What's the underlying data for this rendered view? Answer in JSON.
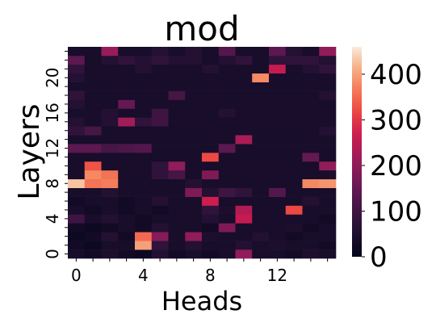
{
  "chart_data": {
    "type": "heatmap",
    "title": "mod",
    "xlabel": "Heads",
    "ylabel": "Layers",
    "x": [
      0,
      1,
      2,
      3,
      4,
      5,
      6,
      7,
      8,
      9,
      10,
      11,
      12,
      13,
      14,
      15
    ],
    "y": [
      0,
      1,
      2,
      3,
      4,
      5,
      6,
      7,
      8,
      9,
      10,
      11,
      12,
      13,
      14,
      15,
      16,
      17,
      18,
      19,
      20,
      21,
      22,
      23
    ],
    "x_tick_labels": [
      "0",
      "4",
      "8",
      "12"
    ],
    "y_tick_labels": [
      "0",
      "4",
      "8",
      "12",
      "16",
      "20"
    ],
    "x_tick_values": [
      0,
      4,
      8,
      12
    ],
    "y_tick_values": [
      0,
      4,
      8,
      12,
      16,
      20
    ],
    "colorbar": {
      "min": 0,
      "max": 460,
      "tick_values": [
        0,
        100,
        200,
        300,
        400
      ],
      "tick_labels": [
        "0",
        "100",
        "200",
        "300",
        "400"
      ],
      "colormap": "rocket"
    },
    "grid": false,
    "values": [
      [
        40,
        30,
        50,
        30,
        20,
        60,
        30,
        40,
        30,
        40,
        200,
        40,
        40,
        30,
        50,
        40
      ],
      [
        30,
        20,
        40,
        40,
        400,
        80,
        40,
        60,
        40,
        40,
        60,
        40,
        50,
        40,
        40,
        30
      ],
      [
        20,
        30,
        60,
        30,
        350,
        190,
        40,
        200,
        50,
        40,
        40,
        60,
        40,
        30,
        40,
        40
      ],
      [
        30,
        20,
        30,
        40,
        30,
        60,
        40,
        40,
        30,
        180,
        40,
        40,
        40,
        50,
        30,
        40
      ],
      [
        100,
        40,
        60,
        40,
        30,
        40,
        40,
        40,
        60,
        40,
        260,
        40,
        40,
        40,
        40,
        30
      ],
      [
        40,
        30,
        40,
        30,
        40,
        30,
        40,
        40,
        80,
        50,
        240,
        40,
        40,
        320,
        40,
        40
      ],
      [
        30,
        40,
        40,
        30,
        40,
        60,
        40,
        40,
        270,
        40,
        40,
        40,
        40,
        40,
        60,
        40
      ],
      [
        40,
        40,
        60,
        40,
        40,
        40,
        40,
        180,
        60,
        100,
        80,
        40,
        130,
        40,
        40,
        40
      ],
      [
        430,
        360,
        370,
        40,
        40,
        40,
        40,
        60,
        40,
        40,
        40,
        40,
        40,
        40,
        380,
        390
      ],
      [
        40,
        380,
        360,
        40,
        40,
        80,
        110,
        40,
        180,
        40,
        40,
        40,
        40,
        40,
        40,
        40
      ],
      [
        40,
        330,
        40,
        40,
        40,
        80,
        200,
        40,
        40,
        40,
        40,
        40,
        40,
        40,
        40,
        200
      ],
      [
        40,
        40,
        40,
        40,
        40,
        40,
        40,
        40,
        320,
        40,
        40,
        40,
        40,
        40,
        150,
        40
      ],
      [
        140,
        140,
        110,
        120,
        130,
        40,
        40,
        40,
        40,
        140,
        40,
        40,
        40,
        40,
        40,
        40
      ],
      [
        40,
        40,
        40,
        40,
        40,
        40,
        40,
        40,
        40,
        40,
        230,
        40,
        40,
        40,
        40,
        40
      ],
      [
        80,
        110,
        40,
        40,
        40,
        40,
        40,
        40,
        40,
        40,
        40,
        40,
        40,
        40,
        40,
        60
      ],
      [
        60,
        40,
        60,
        220,
        80,
        100,
        40,
        40,
        40,
        40,
        40,
        40,
        40,
        40,
        40,
        40
      ],
      [
        40,
        40,
        60,
        40,
        40,
        100,
        40,
        40,
        40,
        60,
        40,
        40,
        40,
        40,
        40,
        40
      ],
      [
        60,
        40,
        40,
        150,
        40,
        40,
        40,
        40,
        40,
        40,
        40,
        40,
        40,
        40,
        40,
        40
      ],
      [
        80,
        40,
        40,
        40,
        40,
        40,
        110,
        40,
        40,
        40,
        40,
        40,
        40,
        40,
        40,
        60
      ],
      [
        40,
        40,
        40,
        40,
        40,
        40,
        40,
        40,
        40,
        40,
        40,
        40,
        40,
        40,
        40,
        40
      ],
      [
        60,
        40,
        40,
        40,
        40,
        40,
        40,
        40,
        40,
        40,
        40,
        380,
        40,
        40,
        40,
        40
      ],
      [
        80,
        40,
        40,
        40,
        60,
        40,
        40,
        40,
        60,
        40,
        40,
        40,
        260,
        40,
        60,
        80
      ],
      [
        140,
        40,
        60,
        80,
        60,
        80,
        60,
        60,
        40,
        60,
        80,
        40,
        80,
        80,
        80,
        60
      ],
      [
        40,
        40,
        210,
        40,
        40,
        60,
        40,
        60,
        40,
        130,
        40,
        40,
        140,
        60,
        40,
        200
      ]
    ]
  }
}
